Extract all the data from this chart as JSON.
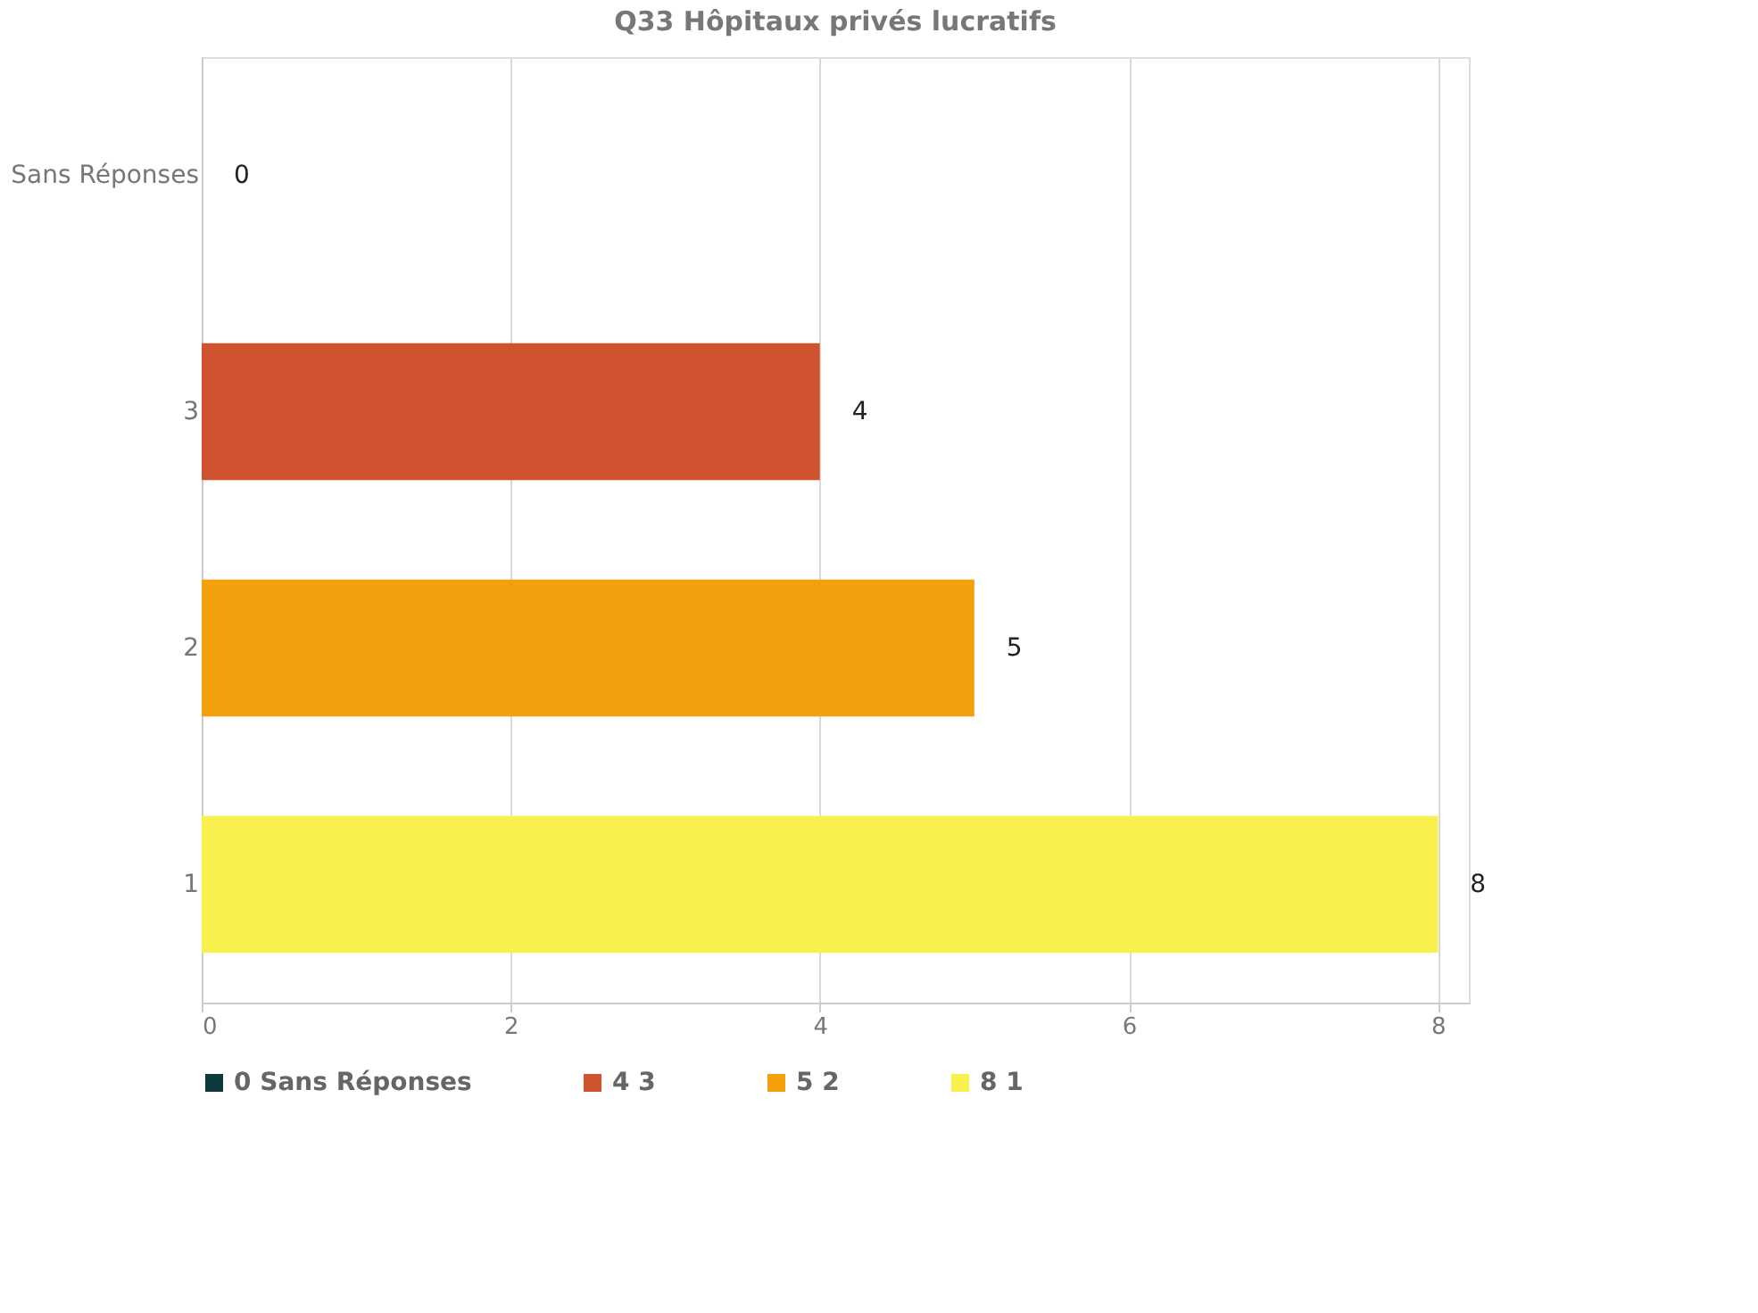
{
  "chart_data": {
    "type": "bar",
    "title": "Q33 Hôpitaux privés lucratifs",
    "orientation": "horizontal",
    "stacked": true,
    "categories": [
      "Sans Réponses",
      "3",
      "2",
      "1"
    ],
    "series": [
      {
        "name": "0 Sans Réponses",
        "color": "#0d3b3b",
        "values": [
          0,
          null,
          null,
          null
        ]
      },
      {
        "name": "4 3",
        "color": "#d0532f",
        "values": [
          null,
          4,
          null,
          null
        ]
      },
      {
        "name": "5 2",
        "color": "#f4a00c",
        "values": [
          null,
          null,
          5,
          null
        ]
      },
      {
        "name": "8 1",
        "color": "#f8f04c",
        "values": [
          null,
          null,
          null,
          8
        ]
      }
    ],
    "xlim": [
      0,
      8.2
    ],
    "xticks": [
      0,
      2,
      4,
      6,
      8
    ],
    "grid": true,
    "legend": "bottom",
    "data_labels": true
  }
}
